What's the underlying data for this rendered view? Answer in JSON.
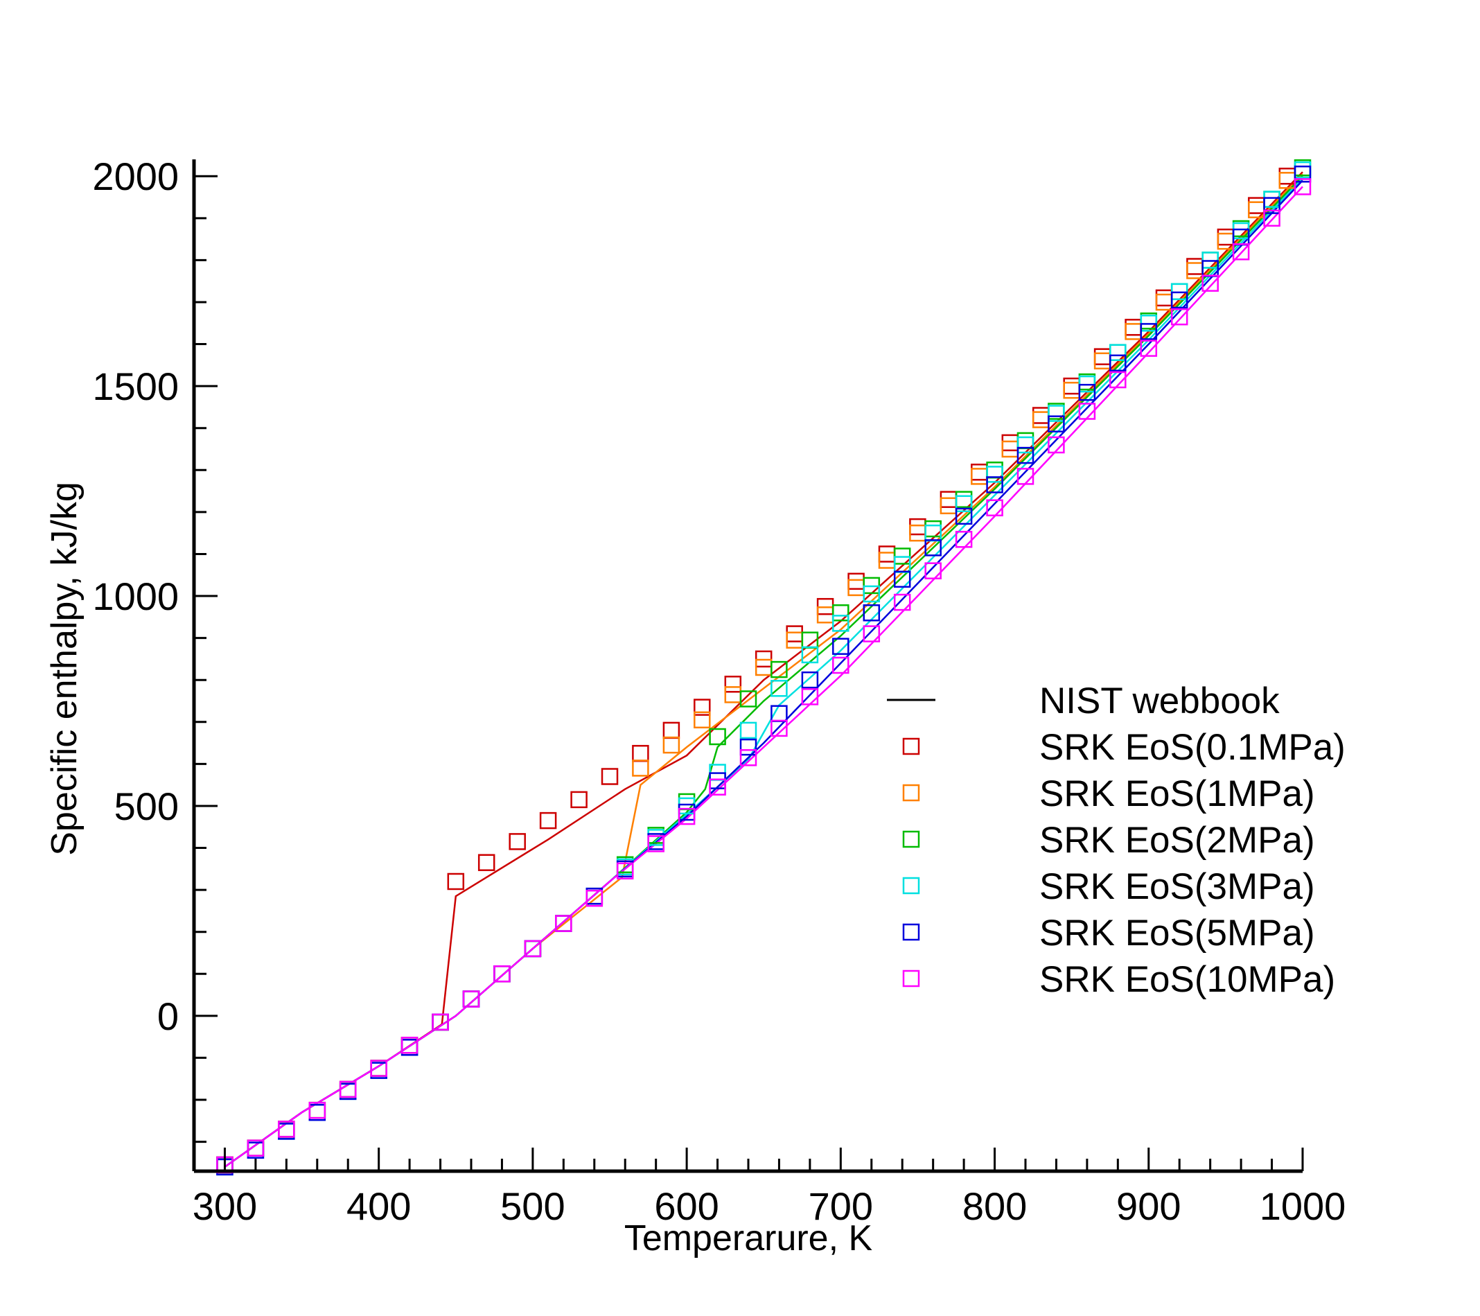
{
  "chart_data": {
    "type": "line",
    "xlabel": "Temperarure, K",
    "ylabel": "Specific enthalpy, kJ/kg",
    "xlim": [
      280,
      1000
    ],
    "ylim": [
      -370,
      2040
    ],
    "xticks": [
      300,
      400,
      500,
      600,
      700,
      800,
      900,
      1000
    ],
    "yticks": [
      0,
      500,
      1000,
      1500,
      2000
    ],
    "x_minor_step": 20,
    "y_minor_step": 100,
    "grid": false,
    "legend_position": "center-right",
    "lines": [
      {
        "name": "NIST webbook",
        "legend_color": "#000000",
        "color": "#cc0000",
        "x": [
          300,
          350,
          400,
          441,
          450,
          510,
          560,
          600,
          650,
          700,
          800,
          900,
          1000
        ],
        "y": [
          -360,
          -230,
          -120,
          -20,
          285,
          420,
          540,
          620,
          800,
          940,
          1270,
          1630,
          2010
        ]
      },
      {
        "color": "#ff8000",
        "x": [
          300,
          350,
          400,
          450,
          500,
          558,
          570,
          600,
          650,
          700,
          800,
          900,
          1000
        ],
        "y": [
          -360,
          -230,
          -120,
          0,
          160,
          330,
          550,
          640,
          780,
          920,
          1260,
          1625,
          2005
        ]
      },
      {
        "color": "#00bb00",
        "x": [
          300,
          350,
          400,
          450,
          500,
          550,
          600,
          612,
          620,
          650,
          700,
          800,
          900,
          1000
        ],
        "y": [
          -360,
          -230,
          -120,
          0,
          160,
          320,
          485,
          540,
          640,
          750,
          905,
          1255,
          1620,
          2000
        ]
      },
      {
        "color": "#00e0e0",
        "x": [
          300,
          350,
          400,
          450,
          500,
          550,
          600,
          640,
          660,
          700,
          800,
          900,
          1000
        ],
        "y": [
          -360,
          -230,
          -120,
          0,
          160,
          320,
          480,
          610,
          740,
          870,
          1240,
          1610,
          1995
        ]
      },
      {
        "color": "#0000dd",
        "x": [
          300,
          350,
          400,
          450,
          500,
          550,
          600,
          650,
          700,
          800,
          900,
          1000
        ],
        "y": [
          -360,
          -230,
          -120,
          0,
          160,
          320,
          475,
          650,
          840,
          1220,
          1600,
          1990
        ]
      },
      {
        "color": "#ff00ff",
        "x": [
          300,
          350,
          400,
          450,
          500,
          550,
          600,
          650,
          700,
          800,
          900,
          1000
        ],
        "y": [
          -360,
          -230,
          -120,
          0,
          160,
          320,
          470,
          640,
          810,
          1190,
          1580,
          1975
        ]
      }
    ],
    "series": [
      {
        "name": "SRK EoS(0.1MPa)",
        "color": "#cc0000",
        "x": [
          300,
          320,
          340,
          360,
          380,
          400,
          420,
          440,
          450,
          470,
          490,
          510,
          530,
          550,
          570,
          590,
          610,
          630,
          650,
          670,
          690,
          710,
          730,
          750,
          770,
          790,
          810,
          830,
          850,
          870,
          890,
          910,
          930,
          950,
          970,
          990
        ],
        "y": [
          -355,
          -315,
          -270,
          -225,
          -175,
          -125,
          -70,
          -15,
          320,
          365,
          415,
          465,
          515,
          570,
          625,
          680,
          735,
          790,
          850,
          910,
          975,
          1035,
          1100,
          1165,
          1230,
          1295,
          1365,
          1430,
          1500,
          1570,
          1640,
          1710,
          1785,
          1855,
          1930,
          2000
        ]
      },
      {
        "name": "SRK EoS(1MPa)",
        "color": "#ff8000",
        "x": [
          300,
          320,
          340,
          360,
          380,
          400,
          420,
          440,
          460,
          480,
          500,
          520,
          540,
          560,
          570,
          590,
          610,
          630,
          650,
          670,
          690,
          710,
          730,
          750,
          770,
          790,
          810,
          830,
          850,
          870,
          890,
          910,
          930,
          950,
          970,
          990
        ],
        "y": [
          -355,
          -315,
          -270,
          -225,
          -175,
          -125,
          -70,
          -15,
          40,
          100,
          160,
          220,
          285,
          355,
          590,
          645,
          705,
          765,
          830,
          895,
          955,
          1020,
          1085,
          1150,
          1215,
          1285,
          1350,
          1420,
          1490,
          1560,
          1630,
          1700,
          1775,
          1845,
          1920,
          1990
        ]
      },
      {
        "name": "SRK EoS(2MPa)",
        "color": "#00bb00",
        "x": [
          300,
          320,
          340,
          360,
          380,
          400,
          420,
          440,
          460,
          480,
          500,
          520,
          540,
          560,
          580,
          600,
          620,
          640,
          660,
          680,
          700,
          720,
          740,
          760,
          780,
          800,
          820,
          840,
          860,
          880,
          900,
          920,
          940,
          960,
          980,
          1000
        ],
        "y": [
          -355,
          -315,
          -270,
          -225,
          -175,
          -125,
          -70,
          -15,
          40,
          100,
          160,
          220,
          285,
          360,
          430,
          510,
          665,
          755,
          825,
          895,
          960,
          1025,
          1095,
          1160,
          1230,
          1300,
          1370,
          1440,
          1510,
          1580,
          1655,
          1725,
          1800,
          1875,
          1945,
          2020
        ]
      },
      {
        "name": "SRK EoS(3MPa)",
        "color": "#00e0e0",
        "x": [
          300,
          320,
          340,
          360,
          380,
          400,
          420,
          440,
          460,
          480,
          500,
          520,
          540,
          560,
          580,
          600,
          620,
          640,
          660,
          680,
          700,
          720,
          740,
          760,
          780,
          800,
          820,
          840,
          860,
          880,
          900,
          920,
          940,
          960,
          980,
          1000
        ],
        "y": [
          -360,
          -320,
          -275,
          -230,
          -180,
          -130,
          -75,
          -15,
          40,
          100,
          160,
          220,
          285,
          355,
          425,
          500,
          580,
          680,
          780,
          860,
          935,
          1005,
          1075,
          1150,
          1220,
          1290,
          1360,
          1435,
          1505,
          1580,
          1650,
          1725,
          1800,
          1870,
          1945,
          2015
        ]
      },
      {
        "name": "SRK EoS(5MPa)",
        "color": "#0000dd",
        "x": [
          300,
          320,
          340,
          360,
          380,
          400,
          420,
          440,
          460,
          480,
          500,
          520,
          540,
          560,
          580,
          600,
          620,
          640,
          660,
          680,
          700,
          720,
          740,
          760,
          780,
          800,
          820,
          840,
          860,
          880,
          900,
          920,
          940,
          960,
          980,
          1000
        ],
        "y": [
          -360,
          -320,
          -275,
          -230,
          -180,
          -130,
          -75,
          -15,
          40,
          100,
          160,
          220,
          285,
          350,
          415,
          485,
          560,
          640,
          720,
          800,
          880,
          960,
          1040,
          1115,
          1190,
          1265,
          1335,
          1410,
          1485,
          1555,
          1630,
          1705,
          1780,
          1855,
          1930,
          2005
        ]
      },
      {
        "name": "SRK EoS(10MPa)",
        "color": "#ff00ff",
        "x": [
          300,
          320,
          340,
          360,
          380,
          400,
          420,
          440,
          460,
          480,
          500,
          520,
          540,
          560,
          580,
          600,
          620,
          640,
          660,
          680,
          700,
          720,
          740,
          760,
          780,
          800,
          820,
          840,
          860,
          880,
          900,
          920,
          940,
          960,
          980,
          1000
        ],
        "y": [
          -355,
          -315,
          -270,
          -225,
          -175,
          -125,
          -70,
          -15,
          40,
          100,
          160,
          220,
          280,
          345,
          410,
          475,
          545,
          615,
          685,
          760,
          835,
          910,
          985,
          1060,
          1135,
          1210,
          1285,
          1360,
          1440,
          1515,
          1590,
          1665,
          1745,
          1820,
          1900,
          1975
        ]
      }
    ]
  }
}
